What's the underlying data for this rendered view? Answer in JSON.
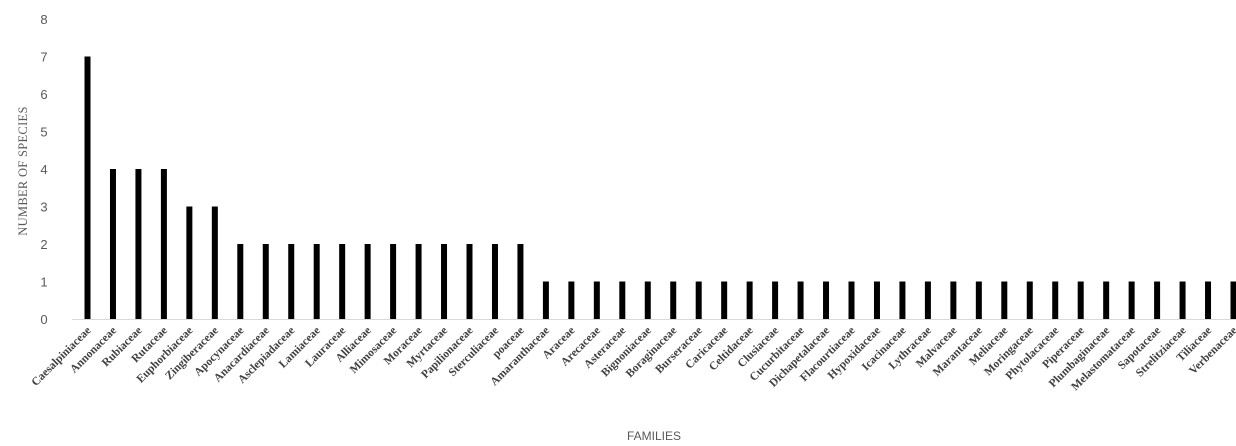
{
  "chart_data": {
    "type": "bar",
    "title": "",
    "xlabel": "FAMILIES",
    "ylabel": "NUMBER OF SPECIES",
    "ylim": [
      0,
      8
    ],
    "yticks": [
      "0",
      "1",
      "2",
      "3",
      "4",
      "5",
      "6",
      "7",
      "8"
    ],
    "grid": false,
    "legend": "none",
    "bar_color": "#000000",
    "categories": [
      "Caesalpiniaceae",
      "Annonaceae",
      "Rubiaceae",
      "Rutaceae",
      "Euphorbiaceae",
      "Zingiberaceae",
      "Apocynaceae",
      "Anacardiaceae",
      "Asclepiadaceae",
      "Lamiaceae",
      "Lauraceae",
      "Alliaceae",
      "Mimosaceae",
      "Moraceae",
      "Myrtaceae",
      "Papilionaceae",
      "Sterculiaceae",
      "poaceae",
      "Amaranthaceae",
      "Araceae",
      "Arecaceae",
      "Asteraceae",
      "Bignoniaceae",
      "Boraginaceae",
      "Burseraceae",
      "Caricaceae",
      "Celtidaceae",
      "Clusiaceae",
      "Cucurbitaceae",
      "Dichapetalaceae",
      "Flacourtiaceae",
      "Hypoxidaceae",
      "Icacinaceae",
      "Lythraceae",
      "Malvaceae",
      "Marantaceae",
      "Meliaceae",
      "Moringaceae",
      "Phytolacaceae",
      "Piperaceae",
      "Plumbaginaceae",
      "Melastomataceae",
      "Sapotaceae",
      "Strelitziaceae",
      "Tiliaceae",
      "Verbenaceae"
    ],
    "values": [
      7,
      4,
      4,
      4,
      3,
      3,
      2,
      2,
      2,
      2,
      2,
      2,
      2,
      2,
      2,
      2,
      2,
      2,
      1,
      1,
      1,
      1,
      1,
      1,
      1,
      1,
      1,
      1,
      1,
      1,
      1,
      1,
      1,
      1,
      1,
      1,
      1,
      1,
      1,
      1,
      1,
      1,
      1,
      1,
      1,
      1
    ]
  }
}
